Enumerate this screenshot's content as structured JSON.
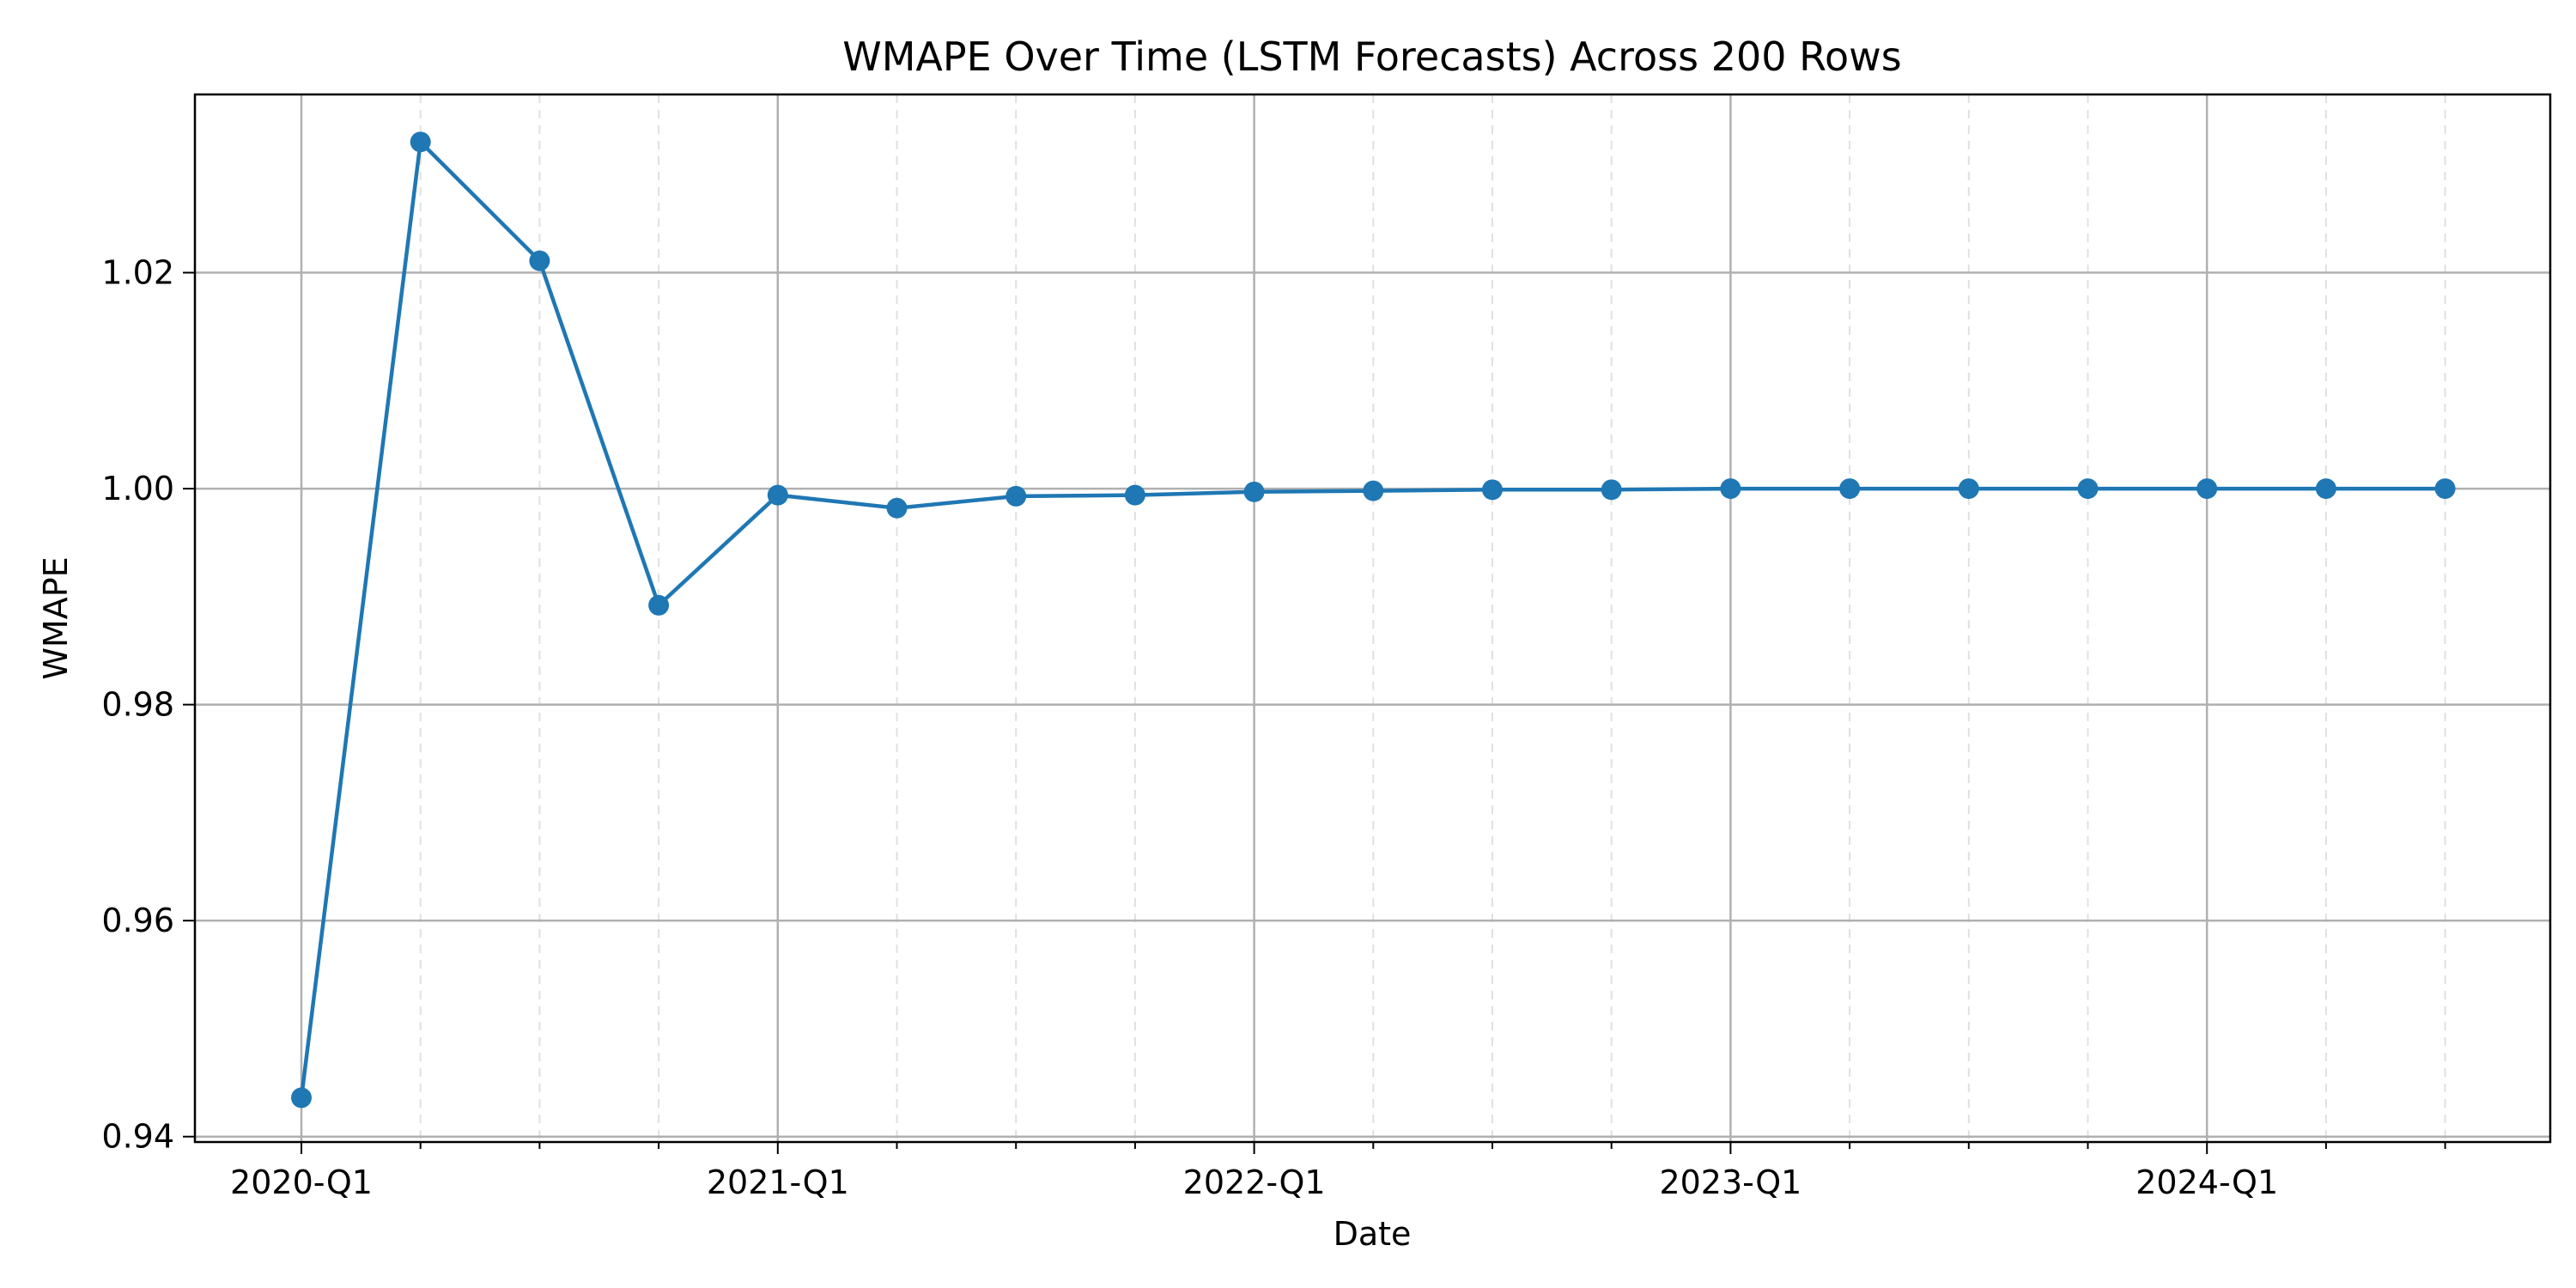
{
  "chart_data": {
    "type": "line",
    "title": "WMAPE Over Time (LSTM Forecasts) Across 200 Rows",
    "xlabel": "Date",
    "ylabel": "WMAPE",
    "grid": true,
    "x_major_ticks": [
      "2020-Q1",
      "2021-Q1",
      "2022-Q1",
      "2023-Q1",
      "2024-Q1"
    ],
    "y_ticks": [
      0.94,
      0.96,
      0.98,
      1.0,
      1.02
    ],
    "ylim": [
      0.9395,
      1.0365
    ],
    "series": [
      {
        "color": "#1f77b4",
        "x": [
          "2020-Q1",
          "2020-Q2",
          "2020-Q3",
          "2020-Q4",
          "2021-Q1",
          "2021-Q2",
          "2021-Q3",
          "2021-Q4",
          "2022-Q1",
          "2022-Q2",
          "2022-Q3",
          "2022-Q4",
          "2023-Q1",
          "2023-Q2",
          "2023-Q3",
          "2023-Q4",
          "2024-Q1",
          "2024-Q2",
          "2024-Q3"
        ],
        "values": [
          0.9436,
          1.0321,
          1.0211,
          0.9892,
          0.9994,
          0.9982,
          0.9993,
          0.9994,
          0.9997,
          0.9998,
          0.9999,
          0.9999,
          1.0,
          1.0,
          1.0,
          1.0,
          1.0,
          1.0,
          1.0
        ]
      }
    ]
  }
}
